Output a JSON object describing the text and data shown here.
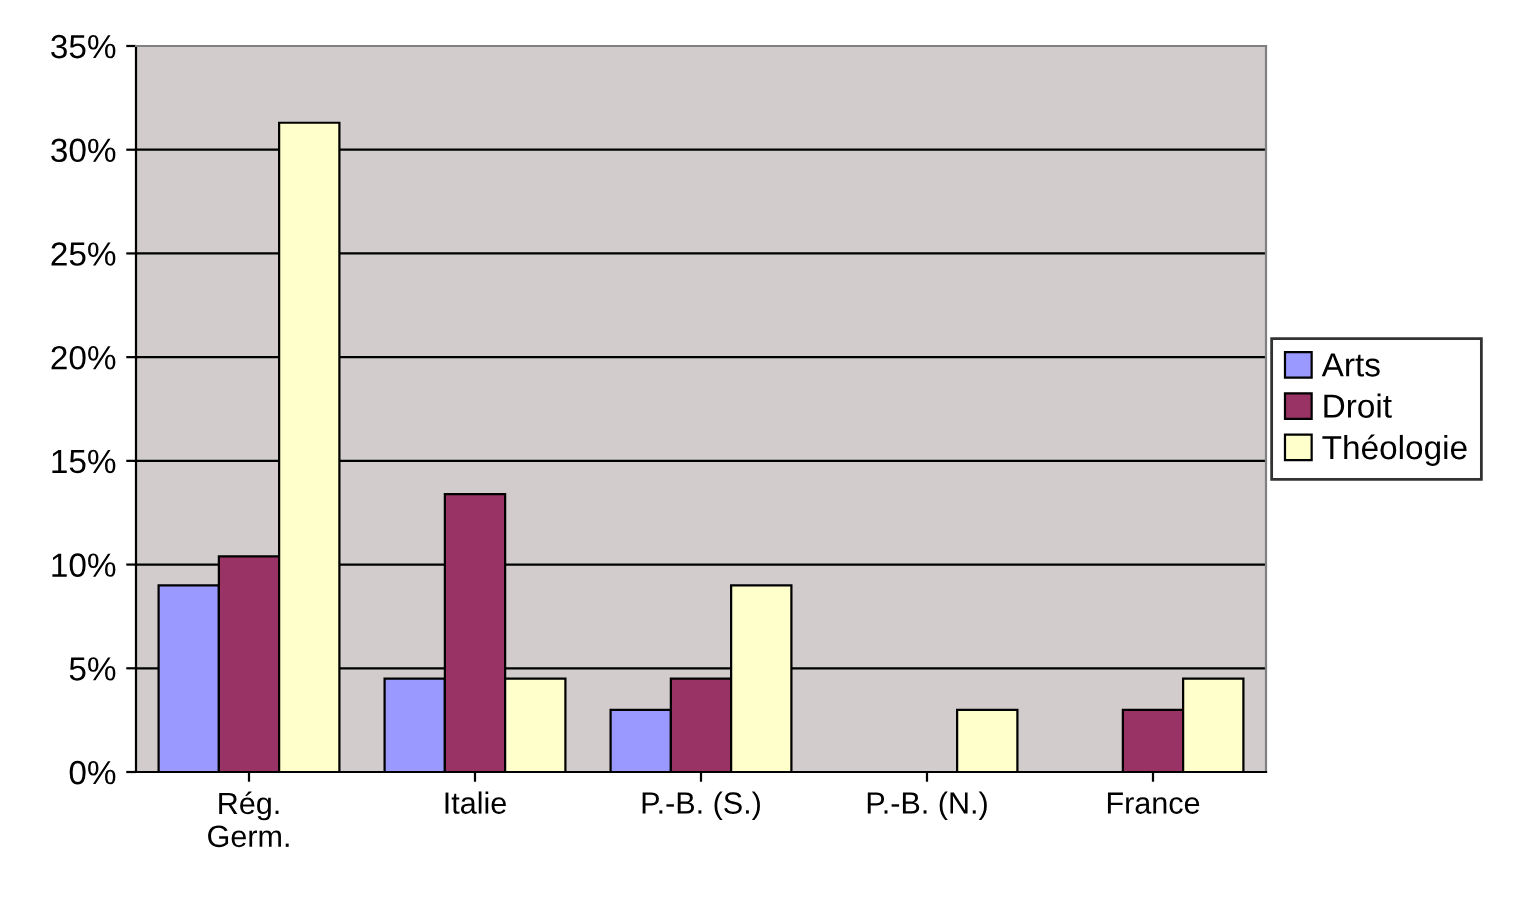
{
  "chart_data": {
    "type": "bar",
    "categories": [
      "Rég.\nGerm.",
      "Italie",
      "P.-B. (S.)",
      "P.-B. (N.)",
      "France"
    ],
    "series": [
      {
        "name": "Arts",
        "color": "#9999ff",
        "values": [
          9.0,
          4.5,
          3.0,
          0,
          0
        ]
      },
      {
        "name": "Droit",
        "color": "#993366",
        "values": [
          10.4,
          13.4,
          4.5,
          0,
          3.0
        ]
      },
      {
        "name": "Théologie",
        "color": "#ffffcc",
        "values": [
          31.3,
          4.5,
          9.0,
          3.0,
          4.5
        ]
      }
    ],
    "ylim": [
      0,
      35
    ],
    "yticks": [
      {
        "value": 0,
        "label": "0%"
      },
      {
        "value": 5,
        "label": "5%"
      },
      {
        "value": 10,
        "label": "10%"
      },
      {
        "value": 15,
        "label": "15%"
      },
      {
        "value": 20,
        "label": "20%"
      },
      {
        "value": 25,
        "label": "25%"
      },
      {
        "value": 30,
        "label": "30%"
      },
      {
        "value": 35,
        "label": "35%"
      }
    ],
    "grid": "y",
    "legend": "right"
  }
}
